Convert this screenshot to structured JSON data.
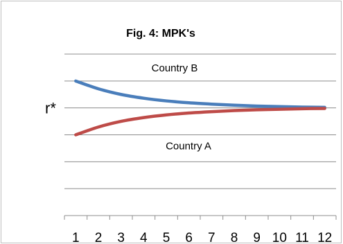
{
  "chart_data": {
    "type": "line",
    "title": "Fig. 4:  MPK's",
    "x": [
      1,
      2,
      3,
      4,
      5,
      6,
      7,
      8,
      9,
      10,
      11,
      12
    ],
    "x_tick_labels": [
      "1",
      "2",
      "3",
      "4",
      "5",
      "6",
      "7",
      "8",
      "9",
      "10",
      "11",
      "12"
    ],
    "ylim": [
      0,
      6
    ],
    "y_tick_labels": [],
    "reference_line": {
      "label": "r*",
      "value": 4
    },
    "grid": true,
    "legend": "none",
    "series": [
      {
        "name": "Country B",
        "color": "#4a7ebb",
        "values": [
          5.0,
          4.71,
          4.5,
          4.36,
          4.26,
          4.19,
          4.14,
          4.1,
          4.07,
          4.05,
          4.03,
          4.02
        ]
      },
      {
        "name": "Country A",
        "color": "#be4b48",
        "values": [
          3.0,
          3.29,
          3.5,
          3.64,
          3.74,
          3.81,
          3.86,
          3.9,
          3.93,
          3.95,
          3.97,
          3.98
        ]
      }
    ]
  }
}
